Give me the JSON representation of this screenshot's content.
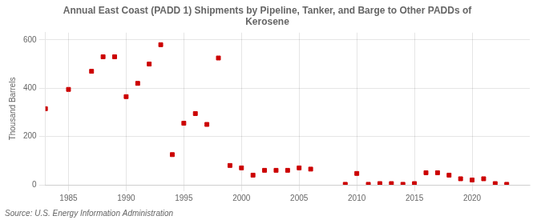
{
  "chart_data": {
    "type": "scatter",
    "title": "Annual East Coast (PADD 1) Shipments by Pipeline, Tanker, and Barge to Other PADDs of\nKerosene",
    "ylabel": "Thousand Barrels",
    "source": "Source: U.S. Energy Information Administration",
    "color": "#cc0000",
    "marker": "square",
    "grid": true,
    "xlim": [
      1983,
      2025
    ],
    "ylim": [
      0,
      630
    ],
    "xticks": [
      1985,
      1990,
      1995,
      2000,
      2005,
      2010,
      2015,
      2020
    ],
    "yticks": [
      0,
      200,
      400,
      600
    ],
    "x": [
      1983,
      1985,
      1987,
      1988,
      1989,
      1990,
      1991,
      1992,
      1993,
      1994,
      1995,
      1996,
      1997,
      1998,
      1999,
      2000,
      2001,
      2002,
      2003,
      2004,
      2005,
      2006,
      2009,
      2010,
      2011,
      2012,
      2013,
      2014,
      2015,
      2016,
      2017,
      2018,
      2019,
      2020,
      2021,
      2022,
      2023
    ],
    "values": [
      315,
      395,
      470,
      530,
      530,
      365,
      420,
      500,
      580,
      125,
      255,
      295,
      250,
      525,
      80,
      70,
      40,
      60,
      60,
      60,
      70,
      65,
      2,
      47,
      2,
      5,
      5,
      2,
      5,
      50,
      50,
      40,
      25,
      20,
      25,
      5,
      2
    ]
  }
}
